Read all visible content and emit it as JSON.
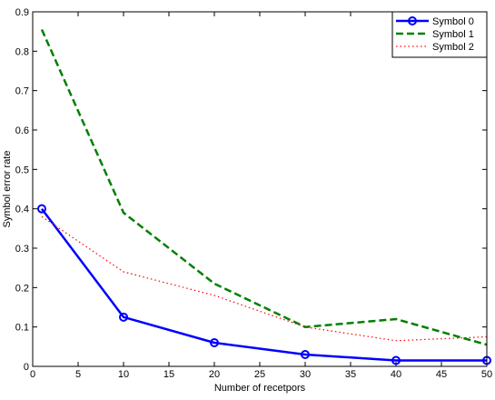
{
  "chart_data": {
    "type": "line",
    "title": "",
    "xlabel": "Number of recetpors",
    "ylabel": "Symbol error rate",
    "xlim": [
      0,
      50
    ],
    "ylim": [
      0,
      0.9
    ],
    "xticks": [
      0,
      5,
      10,
      15,
      20,
      25,
      30,
      35,
      40,
      45,
      50
    ],
    "yticks": [
      0,
      0.1,
      0.2,
      0.3,
      0.4,
      0.5,
      0.6,
      0.7,
      0.8,
      0.9
    ],
    "xtick_labels": [
      "0",
      "5",
      "10",
      "15",
      "20",
      "25",
      "30",
      "35",
      "40",
      "45",
      "50"
    ],
    "ytick_labels": [
      "0",
      "0.1",
      "0.2",
      "0.3",
      "0.4",
      "0.5",
      "0.6",
      "0.7",
      "0.8",
      "0.9"
    ],
    "grid": false,
    "legend_position": "top-right",
    "series": [
      {
        "name": "Symbol 0",
        "color": "#0000ff",
        "line_style": "solid",
        "marker": "circle",
        "x": [
          1,
          10,
          20,
          30,
          40,
          50
        ],
        "y": [
          0.4,
          0.125,
          0.06,
          0.03,
          0.015,
          0.015
        ]
      },
      {
        "name": "Symbol 1",
        "color": "#008000",
        "line_style": "dashed",
        "marker": "none",
        "x": [
          1,
          10,
          20,
          30,
          40,
          50
        ],
        "y": [
          0.855,
          0.39,
          0.21,
          0.1,
          0.12,
          0.055
        ]
      },
      {
        "name": "Symbol 2",
        "color": "#ff0000",
        "line_style": "dotted",
        "marker": "none",
        "x": [
          1,
          10,
          20,
          30,
          40,
          50
        ],
        "y": [
          0.38,
          0.24,
          0.18,
          0.1,
          0.065,
          0.075
        ]
      }
    ]
  }
}
